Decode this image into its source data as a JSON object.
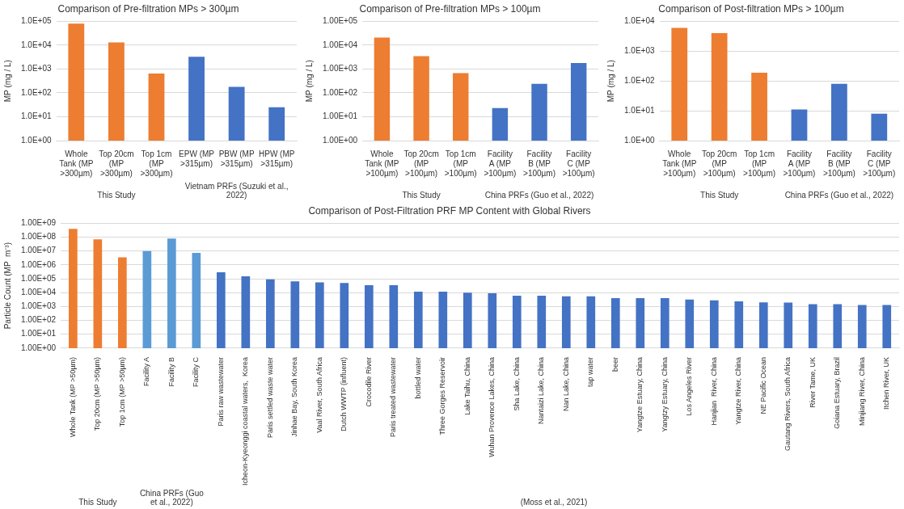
{
  "chart_data": [
    {
      "type": "bar",
      "title": "Comparison of Pre-filtration MPs > 300µm",
      "ylabel": "MP (mg / L)",
      "categories": [
        "Whole Tank (MP >300µm)",
        "Top 20cm (MP >300µm)",
        "Top 1cm (MP >300µm)",
        "EPW (MP >315µm)",
        "PBW (MP >315µm)",
        "HPW (MP >315µm)"
      ],
      "values": [
        80000,
        13000,
        650,
        3300,
        180,
        25
      ],
      "colors": [
        "#ed7d31",
        "#ed7d31",
        "#ed7d31",
        "#4472c4",
        "#4472c4",
        "#4472c4"
      ],
      "log": "y",
      "ylim": [
        1,
        100000
      ],
      "yticks": [
        {
          "value": 1,
          "label": "1.0E+00"
        },
        {
          "value": 10,
          "label": "1.0E+01"
        },
        {
          "value": 100,
          "label": "1.0E+02"
        },
        {
          "value": 1000,
          "label": "1.0E+03"
        },
        {
          "value": 10000,
          "label": "1.0E+04"
        },
        {
          "value": 100000,
          "label": "1.0E+05"
        }
      ],
      "grid": "y",
      "annotations": [
        "This Study",
        "Vietnam PRFs (Suzuki et al., 2022)"
      ]
    },
    {
      "type": "bar",
      "title": "Comparison of Pre-filtration MPs > 100µm",
      "ylabel": "MP (mg / L)",
      "categories": [
        "Whole Tank (MP >100µm)",
        "Top 20cm (MP >100µm)",
        "Top 1cm (MP >100µm)",
        "Facility A (MP >100µm)",
        "Facility B (MP >100µm)",
        "Facility C (MP >100µm)"
      ],
      "values": [
        21000,
        3500,
        680,
        23,
        240,
        1800
      ],
      "colors": [
        "#ed7d31",
        "#ed7d31",
        "#ed7d31",
        "#4472c4",
        "#4472c4",
        "#4472c4"
      ],
      "log": "y",
      "ylim": [
        1,
        100000
      ],
      "yticks": [
        {
          "value": 1,
          "label": "1.00E+00"
        },
        {
          "value": 10,
          "label": "1.00E+01"
        },
        {
          "value": 100,
          "label": "1.00E+02"
        },
        {
          "value": 1000,
          "label": "1.00E+03"
        },
        {
          "value": 10000,
          "label": "1.00E+04"
        },
        {
          "value": 100000,
          "label": "1.00E+05"
        }
      ],
      "grid": "y",
      "annotations": [
        "This Study",
        "China PRFs (Guo et al., 2022)"
      ]
    },
    {
      "type": "bar",
      "title": "Comparison of Post-filtration MPs > 100µm",
      "ylabel": "MP (mg / L)",
      "categories": [
        "Whole Tank (MP >100µm)",
        "Top 20cm (MP >100µm)",
        "Top 1cm (MP >100µm)",
        "Facility A (MP >100µm)",
        "Facility B (MP >100µm)",
        "Facility C (MP >100µm)"
      ],
      "values": [
        6000,
        4000,
        190,
        11,
        80,
        8
      ],
      "colors": [
        "#ed7d31",
        "#ed7d31",
        "#ed7d31",
        "#4472c4",
        "#4472c4",
        "#4472c4"
      ],
      "log": "y",
      "ylim": [
        1,
        10000
      ],
      "yticks": [
        {
          "value": 1,
          "label": "1.0E+00"
        },
        {
          "value": 10,
          "label": "1.0E+01"
        },
        {
          "value": 100,
          "label": "1.0E+02"
        },
        {
          "value": 1000,
          "label": "1.0E+03"
        },
        {
          "value": 10000,
          "label": "1.0E+04"
        }
      ],
      "grid": "y",
      "annotations": [
        "This Study",
        "China PRFs (Guo et al., 2022)"
      ]
    },
    {
      "type": "bar",
      "title": "Comparison of Post-Filtration PRF MP Content with Global Rivers",
      "ylabel": "Particle Count (MP  m⁻³)",
      "categories": [
        "Whole Tank (MP >50µm)",
        "Top 20cm (MP >50µm)",
        "Top 1cm (MP >50µm)",
        "Facility A",
        "Facility B",
        "Facility C",
        "Paris raw wastewater",
        "Icheon-Kyeonggi coastal waters,  Korea",
        "Paris settled waste water",
        "Jinhae Bay, South Korea",
        "Vaal River, South Africa",
        "Dutch WWTP (influent)",
        "Crocodile River",
        "Paris treated wastewater",
        "bottled water",
        "Three Gorges Reservoir",
        "Lake Taihu, China",
        "Wuhan Provence Lakes, China",
        "Sha Lake, China",
        "Nantaizi Lake, China",
        "Nan Lake, China",
        "tap water",
        "beer",
        "Yangtze Estuary, China",
        "Yangtzy Estuary, China",
        "Los Angeles River",
        "Hanjian  River, China",
        "Yangtze River, China",
        "NE Pacific Ocean",
        "Gautang Rivers, South Africa",
        "River Tame, UK",
        "Goiana Estuary, Brazil",
        "Minjiang River, China",
        "Itchen River, UK"
      ],
      "values": [
        400000000,
        70000000,
        3500000,
        10000000,
        80000000,
        7500000,
        300000,
        150000,
        90000,
        65000,
        55000,
        50000,
        35000,
        35000,
        12000,
        12000,
        10000,
        9000,
        6000,
        6000,
        5500,
        5500,
        4000,
        4000,
        4000,
        3200,
        2800,
        2400,
        2000,
        1900,
        1500,
        1500,
        1300,
        1300
      ],
      "colors": [
        "#ed7d31",
        "#ed7d31",
        "#ed7d31",
        "#5b9bd5",
        "#5b9bd5",
        "#5b9bd5",
        "#4472c4",
        "#4472c4",
        "#4472c4",
        "#4472c4",
        "#4472c4",
        "#4472c4",
        "#4472c4",
        "#4472c4",
        "#4472c4",
        "#4472c4",
        "#4472c4",
        "#4472c4",
        "#4472c4",
        "#4472c4",
        "#4472c4",
        "#4472c4",
        "#4472c4",
        "#4472c4",
        "#4472c4",
        "#4472c4",
        "#4472c4",
        "#4472c4",
        "#4472c4",
        "#4472c4",
        "#4472c4",
        "#4472c4",
        "#4472c4",
        "#4472c4"
      ],
      "log": "y",
      "ylim": [
        1,
        1000000000
      ],
      "yticks": [
        {
          "value": 1,
          "label": "1.00E+00"
        },
        {
          "value": 10,
          "label": "1.00E+01"
        },
        {
          "value": 100,
          "label": "1.00E+02"
        },
        {
          "value": 1000,
          "label": "1.00E+03"
        },
        {
          "value": 10000,
          "label": "1.00E+04"
        },
        {
          "value": 100000,
          "label": "1.00E+05"
        },
        {
          "value": 1000000,
          "label": "1.00E+06"
        },
        {
          "value": 10000000,
          "label": "1.00E+07"
        },
        {
          "value": 100000000,
          "label": "1.00E+08"
        },
        {
          "value": 1000000000,
          "label": "1.00E+09"
        }
      ],
      "grid": "y",
      "annotations": [
        "This Study",
        "China PRFs (Guo et al., 2022)",
        "(Moss et al., 2021)"
      ]
    }
  ]
}
